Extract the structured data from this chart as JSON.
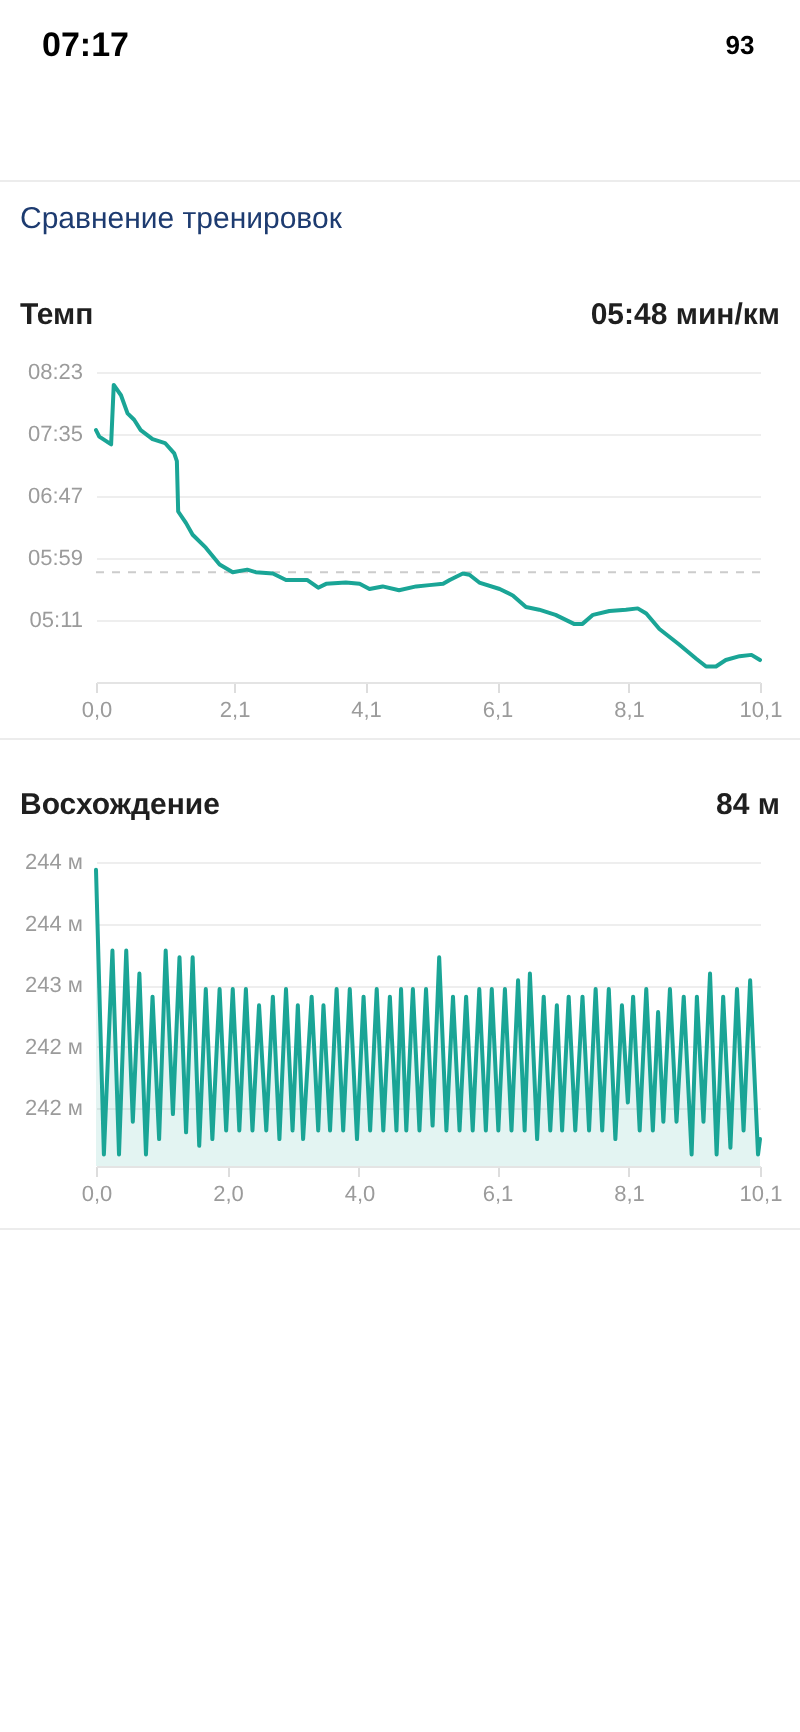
{
  "chart_data": [
    {
      "type": "other",
      "annotations": [
        "07:17",
        "93",
        "Сравнение тренировок"
      ]
    },
    {
      "type": "line",
      "title": "Темп",
      "subtitle": "05:48 мин/км",
      "color": "#1aa596",
      "x": [
        0,
        0.05,
        0.23,
        0.27,
        0.38,
        0.48,
        0.58,
        0.68,
        0.86,
        1.05,
        1.19,
        1.23,
        1.25,
        1.37,
        1.47,
        1.67,
        1.88,
        2.08,
        2.3,
        2.43,
        2.69,
        2.89,
        3.09,
        3.21,
        3.38,
        3.5,
        3.8,
        4.01,
        4.16,
        4.36,
        4.61,
        4.87,
        5.07,
        5.28,
        5.38,
        5.58,
        5.68,
        5.83,
        6.14,
        6.34,
        6.54,
        6.74,
        6.99,
        7.27,
        7.4,
        7.56,
        7.81,
        8.06,
        8.24,
        8.37,
        8.57,
        8.87,
        9.13,
        9.28,
        9.43,
        9.58,
        9.79,
        9.97,
        10.1
      ],
      "values": [
        458,
        453,
        447,
        493,
        485,
        471,
        466,
        458,
        451,
        448,
        440,
        434,
        395,
        386,
        377,
        367,
        354,
        348,
        350,
        348,
        347,
        342,
        342,
        342,
        336,
        339,
        340,
        339,
        335,
        337,
        334,
        337,
        338,
        339,
        342,
        347,
        346,
        340,
        335,
        330,
        321,
        319,
        315,
        308,
        308,
        315,
        318,
        319,
        320,
        316,
        304,
        292,
        281,
        275,
        275,
        280,
        283,
        284,
        280
      ],
      "xlim": [
        0,
        10.1
      ],
      "xticks": [
        {
          "value": 0,
          "label": "0,0"
        },
        {
          "value": 2.1,
          "label": "2,1"
        },
        {
          "value": 4.1,
          "label": "4,1"
        },
        {
          "value": 6.1,
          "label": "6,1"
        },
        {
          "value": 8.1,
          "label": "8,1"
        },
        {
          "value": 10.1,
          "label": "10,1"
        }
      ],
      "ylim": [
        263,
        503
      ],
      "yticks": [
        {
          "value": 311,
          "label": "05:11"
        },
        {
          "value": 359,
          "label": "05:59"
        },
        {
          "value": 407,
          "label": "06:47"
        },
        {
          "value": 455,
          "label": "07:35"
        },
        {
          "value": 503,
          "label": "08:23"
        }
      ],
      "grid": "y",
      "ref_lines": [
        {
          "axis": "y",
          "value": 348,
          "color": "#cccccc",
          "line_style": "dashed"
        }
      ]
    },
    {
      "type": "area",
      "title": "Восхождение",
      "subtitle": "84 м",
      "color": "#1aa596",
      "x": [
        0,
        0.12,
        0.25,
        0.35,
        0.46,
        0.56,
        0.66,
        0.76,
        0.86,
        0.96,
        1.06,
        1.17,
        1.27,
        1.37,
        1.47,
        1.57,
        1.67,
        1.77,
        1.88,
        1.98,
        2.08,
        2.18,
        2.28,
        2.38,
        2.48,
        2.59,
        2.69,
        2.79,
        2.89,
        2.99,
        3.07,
        3.15,
        3.28,
        3.38,
        3.46,
        3.56,
        3.66,
        3.76,
        3.86,
        3.97,
        4.07,
        4.17,
        4.27,
        4.37,
        4.47,
        4.57,
        4.64,
        4.72,
        4.82,
        4.92,
        5.02,
        5.12,
        5.22,
        5.33,
        5.43,
        5.53,
        5.63,
        5.73,
        5.83,
        5.93,
        6.02,
        6.12,
        6.22,
        6.32,
        6.42,
        6.52,
        6.6,
        6.71,
        6.81,
        6.91,
        7.01,
        7.09,
        7.19,
        7.29,
        7.4,
        7.5,
        7.6,
        7.7,
        7.8,
        7.9,
        8.0,
        8.09,
        8.17,
        8.27,
        8.37,
        8.47,
        8.55,
        8.63,
        8.73,
        8.83,
        8.94,
        9.06,
        9.14,
        9.24,
        9.34,
        9.44,
        9.54,
        9.65,
        9.75,
        9.85,
        9.95,
        10.07,
        10.1
      ],
      "values": [
        244.08,
        241.12,
        243.24,
        241.12,
        243.24,
        241.46,
        243.0,
        241.12,
        242.76,
        241.28,
        243.24,
        241.54,
        243.17,
        241.35,
        243.17,
        241.21,
        242.84,
        241.28,
        242.84,
        241.37,
        242.84,
        241.37,
        242.84,
        241.37,
        242.67,
        241.37,
        242.76,
        241.28,
        242.84,
        241.37,
        242.67,
        241.28,
        242.76,
        241.37,
        242.67,
        241.37,
        242.84,
        241.37,
        242.84,
        241.28,
        242.76,
        241.37,
        242.84,
        241.37,
        242.76,
        241.37,
        242.84,
        241.37,
        242.84,
        241.37,
        242.84,
        241.42,
        243.17,
        241.37,
        242.76,
        241.37,
        242.76,
        241.37,
        242.84,
        241.37,
        242.84,
        241.37,
        242.84,
        241.37,
        242.93,
        241.37,
        243.0,
        241.28,
        242.76,
        241.37,
        242.67,
        241.37,
        242.76,
        241.37,
        242.76,
        241.37,
        242.84,
        241.37,
        242.84,
        241.28,
        242.67,
        241.66,
        242.76,
        241.37,
        242.84,
        241.37,
        242.6,
        241.46,
        242.84,
        241.46,
        242.76,
        241.12,
        242.76,
        241.46,
        243.0,
        241.12,
        242.76,
        241.19,
        242.84,
        241.37,
        242.93,
        241.12,
        241.28
      ],
      "xlim": [
        0,
        10.1
      ],
      "xticks": [
        {
          "value": 0,
          "label": "0,0"
        },
        {
          "value": 2.0,
          "label": "2,0"
        },
        {
          "value": 4.0,
          "label": "4,0"
        },
        {
          "value": 6.1,
          "label": "6,1"
        },
        {
          "value": 8.1,
          "label": "8,1"
        },
        {
          "value": 10.1,
          "label": "10,1"
        }
      ],
      "ylim": [
        241.0,
        244.16
      ],
      "yticks": [
        {
          "value": 241.6,
          "label": "242 м"
        },
        {
          "value": 242.24,
          "label": "242 м"
        },
        {
          "value": 242.88,
          "label": "243 м"
        },
        {
          "value": 243.52,
          "label": "244 м"
        },
        {
          "value": 244.16,
          "label": "244 м"
        }
      ],
      "grid": "y"
    }
  ]
}
